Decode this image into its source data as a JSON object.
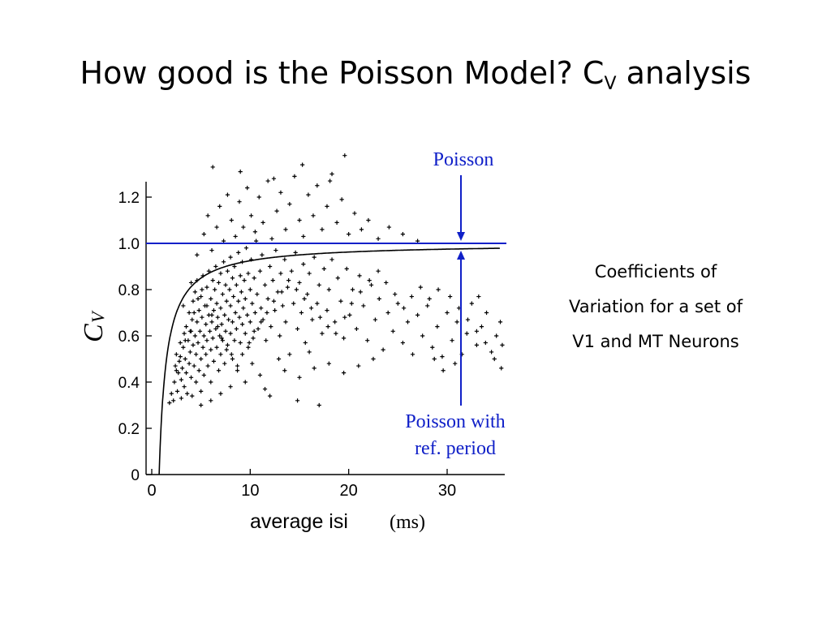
{
  "slide": {
    "title_main": "How good is the Poisson Model? C",
    "title_sub": "V",
    "title_tail": " analysis",
    "note": "Coefficients of Variation for a set of V1 and MT Neurons"
  },
  "chart_data": {
    "type": "scatter",
    "title": "",
    "xlabel": "average isi",
    "xlabel_unit": "(ms)",
    "ylabel": "C",
    "ylabel_sub": "V",
    "xlim": [
      0,
      36
    ],
    "ylim": [
      0,
      1.3
    ],
    "xticks": [
      0,
      10,
      20,
      30
    ],
    "yticks": [
      0,
      0.2,
      0.4,
      0.6,
      0.8,
      1.0,
      1.2
    ],
    "ytick_labels": [
      "0",
      "0.2",
      "0.4",
      "0.6",
      "0.8",
      "1.0",
      "1.2"
    ],
    "grid": false,
    "points_marker": "+",
    "poisson_line": {
      "label": "Poisson",
      "y": 1.0,
      "color": "#1020c8"
    },
    "refractory_curve": {
      "label": "Poisson with ref. period",
      "label_line1": "Poisson with",
      "label_line2": "ref. period",
      "formula": "1 - tref/isi",
      "tref_ms": 0.75
    },
    "points": [
      [
        1.8,
        0.31
      ],
      [
        2.0,
        0.35
      ],
      [
        2.2,
        0.32
      ],
      [
        2.3,
        0.4
      ],
      [
        2.4,
        0.47
      ],
      [
        2.5,
        0.52
      ],
      [
        2.6,
        0.36
      ],
      [
        2.7,
        0.44
      ],
      [
        2.8,
        0.49
      ],
      [
        2.9,
        0.57
      ],
      [
        3.0,
        0.33
      ],
      [
        3.0,
        0.41
      ],
      [
        3.1,
        0.46
      ],
      [
        3.2,
        0.55
      ],
      [
        3.3,
        0.61
      ],
      [
        3.3,
        0.38
      ],
      [
        3.4,
        0.5
      ],
      [
        3.5,
        0.64
      ],
      [
        3.5,
        0.44
      ],
      [
        3.6,
        0.35
      ],
      [
        3.7,
        0.58
      ],
      [
        3.8,
        0.48
      ],
      [
        3.8,
        0.7
      ],
      [
        3.9,
        0.53
      ],
      [
        4.0,
        0.42
      ],
      [
        4.0,
        0.62
      ],
      [
        4.1,
        0.67
      ],
      [
        4.1,
        0.34
      ],
      [
        4.2,
        0.56
      ],
      [
        4.2,
        0.75
      ],
      [
        4.3,
        0.47
      ],
      [
        4.4,
        0.6
      ],
      [
        4.4,
        0.79
      ],
      [
        4.5,
        0.52
      ],
      [
        4.5,
        0.4
      ],
      [
        4.6,
        0.66
      ],
      [
        4.6,
        0.84
      ],
      [
        4.7,
        0.57
      ],
      [
        4.8,
        0.45
      ],
      [
        4.8,
        0.71
      ],
      [
        4.9,
        0.62
      ],
      [
        5.0,
        0.5
      ],
      [
        5.0,
        0.77
      ],
      [
        5.0,
        0.36
      ],
      [
        5.1,
        0.68
      ],
      [
        5.2,
        0.55
      ],
      [
        5.2,
        0.86
      ],
      [
        5.3,
        0.6
      ],
      [
        5.3,
        0.43
      ],
      [
        5.4,
        0.73
      ],
      [
        5.5,
        0.65
      ],
      [
        5.5,
        0.52
      ],
      [
        5.6,
        0.81
      ],
      [
        5.6,
        0.58
      ],
      [
        5.7,
        0.47
      ],
      [
        5.8,
        0.69
      ],
      [
        5.8,
        0.88
      ],
      [
        5.9,
        0.62
      ],
      [
        6.0,
        0.54
      ],
      [
        6.0,
        0.76
      ],
      [
        6.0,
        0.4
      ],
      [
        6.1,
        0.66
      ],
      [
        6.2,
        0.84
      ],
      [
        6.2,
        0.59
      ],
      [
        6.3,
        0.71
      ],
      [
        6.3,
        0.49
      ],
      [
        6.4,
        0.8
      ],
      [
        6.5,
        0.63
      ],
      [
        6.5,
        0.9
      ],
      [
        6.6,
        0.55
      ],
      [
        6.6,
        0.74
      ],
      [
        6.7,
        0.68
      ],
      [
        6.8,
        0.45
      ],
      [
        6.8,
        0.83
      ],
      [
        6.9,
        0.6
      ],
      [
        7.0,
        0.72
      ],
      [
        7.0,
        0.52
      ],
      [
        7.0,
        0.87
      ],
      [
        7.1,
        0.65
      ],
      [
        7.2,
        0.78
      ],
      [
        7.2,
        0.58
      ],
      [
        7.3,
        0.92
      ],
      [
        7.4,
        0.69
      ],
      [
        7.4,
        0.48
      ],
      [
        7.5,
        0.82
      ],
      [
        7.5,
        0.62
      ],
      [
        7.6,
        0.75
      ],
      [
        7.7,
        0.56
      ],
      [
        7.7,
        0.88
      ],
      [
        7.8,
        0.67
      ],
      [
        7.9,
        0.8
      ],
      [
        8.0,
        0.61
      ],
      [
        8.0,
        0.73
      ],
      [
        8.0,
        0.94
      ],
      [
        8.1,
        0.52
      ],
      [
        8.2,
        0.85
      ],
      [
        8.2,
        0.66
      ],
      [
        8.3,
        0.77
      ],
      [
        8.4,
        0.58
      ],
      [
        8.4,
        0.9
      ],
      [
        8.5,
        0.7
      ],
      [
        8.6,
        0.82
      ],
      [
        8.6,
        0.63
      ],
      [
        8.7,
        0.45
      ],
      [
        8.8,
        0.75
      ],
      [
        8.8,
        0.96
      ],
      [
        8.9,
        0.68
      ],
      [
        9.0,
        0.86
      ],
      [
        9.0,
        0.57
      ],
      [
        9.1,
        0.79
      ],
      [
        9.2,
        0.65
      ],
      [
        9.2,
        0.92
      ],
      [
        9.3,
        0.72
      ],
      [
        9.4,
        0.84
      ],
      [
        9.5,
        0.61
      ],
      [
        9.5,
        0.76
      ],
      [
        9.6,
        0.98
      ],
      [
        9.7,
        0.69
      ],
      [
        9.8,
        0.87
      ],
      [
        9.8,
        0.55
      ],
      [
        10.0,
        0.8
      ],
      [
        10.0,
        0.66
      ],
      [
        10.1,
        0.93
      ],
      [
        10.2,
        0.74
      ],
      [
        10.3,
        0.59
      ],
      [
        10.4,
        0.85
      ],
      [
        10.5,
        0.7
      ],
      [
        10.6,
        1.01
      ],
      [
        10.7,
        0.78
      ],
      [
        10.8,
        0.63
      ],
      [
        11.0,
        0.88
      ],
      [
        11.1,
        0.72
      ],
      [
        11.2,
        0.95
      ],
      [
        11.3,
        0.67
      ],
      [
        11.5,
        0.82
      ],
      [
        11.6,
        0.58
      ],
      [
        11.8,
        0.76
      ],
      [
        12.0,
        0.9
      ],
      [
        12.1,
        0.64
      ],
      [
        12.3,
        0.84
      ],
      [
        12.5,
        0.71
      ],
      [
        12.6,
        0.97
      ],
      [
        12.8,
        0.79
      ],
      [
        13.0,
        0.6
      ],
      [
        13.1,
        0.87
      ],
      [
        13.3,
        0.73
      ],
      [
        13.5,
        0.93
      ],
      [
        13.6,
        0.66
      ],
      [
        13.8,
        0.81
      ],
      [
        14.0,
        0.52
      ],
      [
        14.2,
        0.88
      ],
      [
        14.4,
        0.74
      ],
      [
        14.6,
        0.96
      ],
      [
        14.8,
        0.63
      ],
      [
        15.0,
        0.83
      ],
      [
        15.2,
        0.7
      ],
      [
        15.4,
        0.91
      ],
      [
        15.6,
        0.57
      ],
      [
        15.8,
        0.78
      ],
      [
        16.0,
        0.87
      ],
      [
        16.3,
        0.67
      ],
      [
        16.5,
        0.94
      ],
      [
        16.8,
        0.74
      ],
      [
        17.0,
        0.82
      ],
      [
        17.3,
        0.61
      ],
      [
        17.5,
        0.89
      ],
      [
        17.8,
        0.71
      ],
      [
        18.0,
        0.8
      ],
      [
        18.3,
        0.93
      ],
      [
        18.6,
        0.66
      ],
      [
        18.9,
        0.85
      ],
      [
        19.2,
        0.75
      ],
      [
        19.5,
        0.59
      ],
      [
        19.8,
        0.89
      ],
      [
        20.1,
        0.69
      ],
      [
        20.4,
        0.8
      ],
      [
        20.8,
        0.63
      ],
      [
        21.1,
        0.86
      ],
      [
        21.5,
        0.73
      ],
      [
        21.9,
        0.58
      ],
      [
        22.3,
        0.82
      ],
      [
        22.7,
        0.67
      ],
      [
        23.1,
        0.76
      ],
      [
        23.5,
        0.54
      ],
      [
        24.0,
        0.7
      ],
      [
        24.5,
        0.62
      ],
      [
        25.0,
        0.74
      ],
      [
        25.5,
        0.57
      ],
      [
        26.0,
        0.66
      ],
      [
        26.5,
        0.52
      ],
      [
        27.0,
        0.69
      ],
      [
        27.5,
        0.6
      ],
      [
        28.0,
        0.73
      ],
      [
        28.5,
        0.55
      ],
      [
        29.0,
        0.64
      ],
      [
        29.5,
        0.51
      ],
      [
        30.0,
        0.7
      ],
      [
        30.5,
        0.58
      ],
      [
        31.0,
        0.66
      ],
      [
        31.5,
        0.52
      ],
      [
        32.0,
        0.61
      ],
      [
        32.5,
        0.74
      ],
      [
        33.0,
        0.56
      ],
      [
        33.5,
        0.64
      ],
      [
        34.0,
        0.7
      ],
      [
        34.5,
        0.53
      ],
      [
        35.0,
        0.6
      ],
      [
        35.4,
        0.66
      ],
      [
        35.6,
        0.56
      ],
      [
        33.2,
        0.77
      ],
      [
        3.2,
        0.73
      ],
      [
        4.0,
        0.83
      ],
      [
        4.6,
        0.95
      ],
      [
        5.3,
        1.04
      ],
      [
        5.7,
        1.12
      ],
      [
        6.1,
        0.97
      ],
      [
        6.6,
        1.07
      ],
      [
        6.9,
        1.16
      ],
      [
        7.3,
        1.01
      ],
      [
        7.7,
        1.21
      ],
      [
        8.1,
        1.1
      ],
      [
        8.5,
        1.03
      ],
      [
        8.9,
        1.18
      ],
      [
        9.3,
        1.07
      ],
      [
        9.7,
        1.24
      ],
      [
        10.1,
        1.12
      ],
      [
        10.5,
        1.05
      ],
      [
        10.9,
        1.2
      ],
      [
        11.3,
        1.09
      ],
      [
        11.8,
        1.27
      ],
      [
        12.2,
        1.02
      ],
      [
        12.7,
        1.14
      ],
      [
        13.1,
        1.22
      ],
      [
        13.6,
        1.06
      ],
      [
        14.0,
        1.17
      ],
      [
        14.5,
        1.29
      ],
      [
        15.0,
        1.1
      ],
      [
        15.4,
        1.03
      ],
      [
        15.9,
        1.21
      ],
      [
        16.4,
        1.12
      ],
      [
        16.8,
        1.25
      ],
      [
        17.3,
        1.06
      ],
      [
        17.8,
        1.16
      ],
      [
        18.3,
        1.3
      ],
      [
        18.8,
        1.09
      ],
      [
        19.3,
        1.19
      ],
      [
        20.0,
        1.04
      ],
      [
        20.6,
        1.13
      ],
      [
        21.3,
        1.06
      ],
      [
        22.0,
        1.1
      ],
      [
        23.0,
        1.02
      ],
      [
        24.1,
        1.07
      ],
      [
        25.5,
        1.04
      ],
      [
        27.0,
        1.01
      ],
      [
        6.2,
        1.33
      ],
      [
        9.0,
        1.31
      ],
      [
        12.4,
        1.28
      ],
      [
        15.3,
        1.34
      ],
      [
        18.1,
        1.27
      ],
      [
        19.6,
        1.38
      ],
      [
        5.0,
        0.3
      ],
      [
        6.0,
        0.32
      ],
      [
        7.0,
        0.35
      ],
      [
        8.0,
        0.38
      ],
      [
        9.5,
        0.4
      ],
      [
        11.0,
        0.43
      ],
      [
        12.0,
        0.34
      ],
      [
        13.5,
        0.45
      ],
      [
        15.0,
        0.42
      ],
      [
        16.5,
        0.46
      ],
      [
        18.0,
        0.48
      ],
      [
        19.5,
        0.44
      ],
      [
        21.0,
        0.47
      ],
      [
        22.5,
        0.5
      ],
      [
        17.0,
        0.3
      ],
      [
        14.8,
        0.32
      ],
      [
        11.5,
        0.37
      ],
      [
        10.2,
        0.48
      ],
      [
        12.9,
        0.5
      ],
      [
        16.0,
        0.53
      ],
      [
        2.5,
        0.45
      ],
      [
        2.9,
        0.51
      ],
      [
        3.4,
        0.58
      ],
      [
        3.9,
        0.62
      ],
      [
        4.3,
        0.7
      ],
      [
        4.7,
        0.76
      ],
      [
        5.1,
        0.8
      ],
      [
        5.6,
        0.73
      ],
      [
        6.1,
        0.69
      ],
      [
        6.7,
        0.64
      ],
      [
        7.1,
        0.59
      ],
      [
        7.6,
        0.54
      ],
      [
        8.2,
        0.5
      ],
      [
        8.7,
        0.47
      ],
      [
        9.2,
        0.52
      ],
      [
        9.9,
        0.57
      ],
      [
        10.4,
        0.62
      ],
      [
        11.1,
        0.66
      ],
      [
        11.7,
        0.7
      ],
      [
        12.4,
        0.75
      ],
      [
        13.2,
        0.79
      ],
      [
        13.9,
        0.84
      ],
      [
        14.7,
        0.8
      ],
      [
        15.5,
        0.76
      ],
      [
        16.2,
        0.72
      ],
      [
        17.1,
        0.68
      ],
      [
        17.9,
        0.64
      ],
      [
        18.7,
        0.61
      ],
      [
        19.6,
        0.68
      ],
      [
        20.3,
        0.74
      ],
      [
        21.2,
        0.79
      ],
      [
        22.1,
        0.84
      ],
      [
        23.0,
        0.88
      ],
      [
        23.8,
        0.83
      ],
      [
        24.7,
        0.78
      ],
      [
        25.6,
        0.72
      ],
      [
        26.4,
        0.77
      ],
      [
        27.3,
        0.81
      ],
      [
        28.2,
        0.76
      ],
      [
        29.1,
        0.8
      ],
      [
        30.3,
        0.77
      ],
      [
        31.2,
        0.72
      ],
      [
        32.1,
        0.67
      ],
      [
        33.0,
        0.62
      ],
      [
        33.9,
        0.57
      ],
      [
        34.8,
        0.5
      ],
      [
        35.5,
        0.46
      ],
      [
        30.8,
        0.48
      ],
      [
        29.6,
        0.45
      ],
      [
        28.7,
        0.5
      ]
    ]
  }
}
